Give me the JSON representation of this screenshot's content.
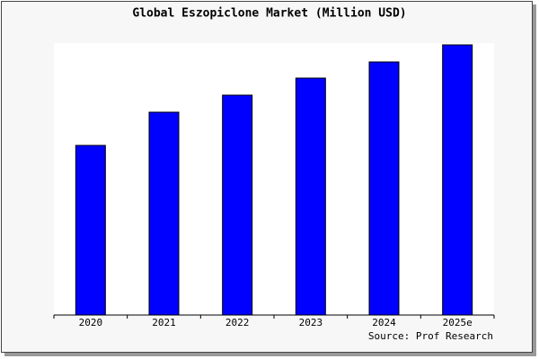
{
  "chart_data": {
    "type": "bar",
    "title": "Global Eszopiclone Market (Million USD)",
    "categories": [
      "2020",
      "2021",
      "2022",
      "2023",
      "2024",
      "2025e"
    ],
    "values": [
      189,
      226,
      245,
      264,
      282,
      301
    ],
    "color": "#0000ff",
    "ylim": [
      0,
      303
    ],
    "source": "Source: Prof Research"
  }
}
